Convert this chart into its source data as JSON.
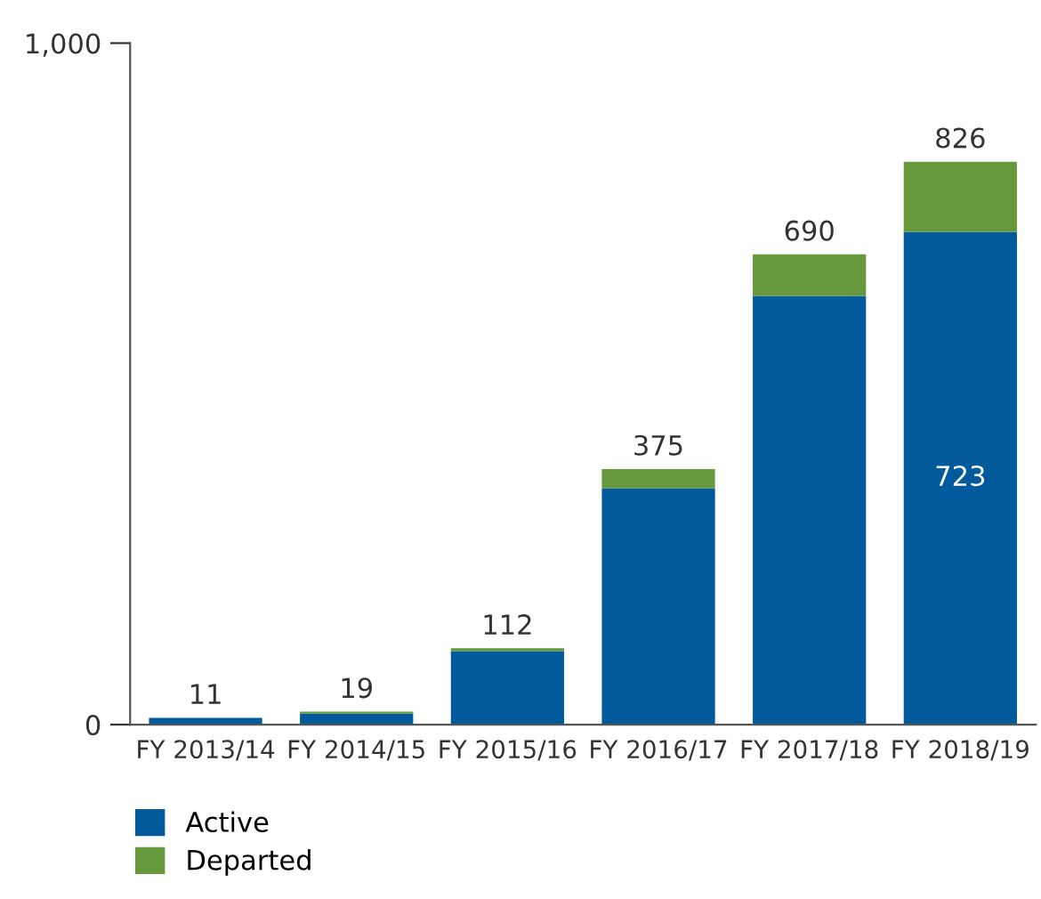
{
  "chart_data": {
    "type": "bar",
    "stacked": true,
    "categories": [
      "FY 2013/14",
      "FY 2014/15",
      "FY 2015/16",
      "FY 2016/17",
      "FY 2017/18",
      "FY 2018/19"
    ],
    "series": [
      {
        "name": "Active",
        "color": "#005a9b",
        "values": [
          10,
          16,
          108,
          347,
          629,
          723
        ],
        "value_labels": [
          null,
          null,
          null,
          null,
          null,
          "723"
        ]
      },
      {
        "name": "Departed",
        "color": "#65993b",
        "values": [
          null,
          3,
          4,
          28,
          61,
          103
        ]
      }
    ],
    "totals": [
      "11",
      "19",
      "112",
      "375",
      "690",
      "826"
    ],
    "ylim": [
      0,
      1000
    ],
    "yticks": [
      0,
      {
        "value": 1000,
        "label": "1,000"
      }
    ],
    "grid": false,
    "legend": "bottom"
  }
}
